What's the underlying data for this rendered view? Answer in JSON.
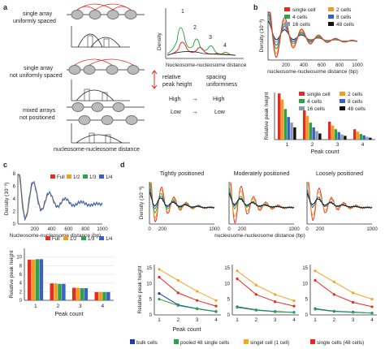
{
  "panels": {
    "a": {
      "letter": "a",
      "schematic_labels": [
        "single array\nuniformly spaced",
        "single array\nnot uniformly spaced",
        "mixed arrays\nnot positioned"
      ],
      "x_label": "nucleosome-nucleosome distance",
      "density_axis": "Density",
      "inset_axis": "Nucleosome-nucleosome distance",
      "peak_numbers": [
        "1",
        "2",
        "3",
        "4"
      ],
      "legend_relative": "relative\npeak height",
      "legend_spacing": "spacing\nuniformness",
      "legend_high": "High",
      "legend_low": "Low",
      "arrow_glyph": "→"
    },
    "b": {
      "letter": "b",
      "density_ylabel": "Density (10⁻³)",
      "density_xlabel": "nucleosome-nucleosome distance (bp)",
      "bar_ylabel": "Relative peak height",
      "bar_xlabel": "Peak count"
    },
    "c": {
      "letter": "c",
      "density_ylabel": "Density (10⁻³)",
      "density_xlabel": "Nucleosome-nucleosome distance (bp)",
      "bar_ylabel": "Relative peak height",
      "bar_xlabel": "Peak count"
    },
    "d": {
      "letter": "d",
      "titles": [
        "Tightly positioned",
        "Moderately positioned",
        "Loosely positioned"
      ],
      "density_ylabel": "Density (10⁻³)",
      "density_xlabel": "nucleosome-nucleosome distance (bp)",
      "line_ylabel": "Relative peak height",
      "line_xlabel": "Peak count",
      "legend": [
        "bulk cells",
        "pooled 48 single cells",
        "singel cell (1 cell)",
        "single cells (48 cells)"
      ]
    }
  },
  "colors": {
    "single_cell": "#e8291b",
    "cells2": "#f39c1f",
    "cells4": "#2aa34a",
    "cells8": "#3a62c4",
    "cells16": "#8e9ab0",
    "cells48": "#111111",
    "full": "#e8291b",
    "half": "#f39c1f",
    "third": "#2aa34a",
    "quarter": "#3a62c4",
    "bulk": "#1f3fa8",
    "pooled": "#2aa34a",
    "singel": "#f5a623",
    "single48": "#e8291b"
  },
  "chart_data": [
    {
      "id": "b-density",
      "type": "line",
      "xlim": [
        0,
        1000
      ],
      "xticks": [
        "200",
        "400",
        "600",
        "800",
        "1000"
      ],
      "yticks": [],
      "series": [
        {
          "name": "single cell",
          "color": "#e8291b",
          "amp": 1.0
        },
        {
          "name": "2 cells",
          "color": "#f39c1f",
          "amp": 0.85
        },
        {
          "name": "4 cells",
          "color": "#2aa34a",
          "amp": 0.65
        },
        {
          "name": "8 cells",
          "color": "#3a62c4",
          "amp": 0.5
        },
        {
          "name": "16 cells",
          "color": "#8e9ab0",
          "amp": 0.38
        },
        {
          "name": "48 cells",
          "color": "#111111",
          "amp": 0.28
        }
      ]
    },
    {
      "id": "b-bars",
      "type": "bar",
      "categories": [
        "1",
        "2",
        "3",
        "4"
      ],
      "yticks": [],
      "ylim": [
        0,
        1.0
      ],
      "series": [
        {
          "name": "single cell",
          "color": "#e8291b",
          "values": [
            0.98,
            0.62,
            0.38,
            0.22
          ]
        },
        {
          "name": "2 cells",
          "color": "#f39c1f",
          "values": [
            0.85,
            0.5,
            0.3,
            0.17
          ]
        },
        {
          "name": "4 cells",
          "color": "#2aa34a",
          "values": [
            0.65,
            0.36,
            0.22,
            0.12
          ]
        },
        {
          "name": "8 cells",
          "color": "#3a62c4",
          "values": [
            0.48,
            0.26,
            0.16,
            0.09
          ]
        },
        {
          "name": "16 cells",
          "color": "#8e9ab0",
          "values": [
            0.36,
            0.18,
            0.11,
            0.06
          ]
        },
        {
          "name": "48 cells",
          "color": "#111111",
          "values": [
            0.26,
            0.13,
            0.08,
            0.04
          ]
        }
      ]
    },
    {
      "id": "c-density",
      "type": "line",
      "xlim": [
        0,
        1000
      ],
      "xticks": [
        "200",
        "400",
        "600",
        "800",
        "1000"
      ],
      "yticks": [
        "0",
        "2",
        "4",
        "6",
        "8"
      ],
      "series": [
        {
          "name": "Full",
          "color": "#e8291b"
        },
        {
          "name": "1/2",
          "color": "#f39c1f"
        },
        {
          "name": "1/3",
          "color": "#2aa34a"
        },
        {
          "name": "1/4",
          "color": "#3a62c4"
        }
      ]
    },
    {
      "id": "c-bars",
      "type": "bar",
      "categories": [
        "1",
        "2",
        "3",
        "4"
      ],
      "yticks": [
        "0",
        "2",
        "4",
        "6",
        "8",
        "10"
      ],
      "ylim": [
        0,
        12
      ],
      "series": [
        {
          "name": "Full",
          "color": "#e8291b",
          "values": [
            9.4,
            3.9,
            2.9,
            1.9
          ]
        },
        {
          "name": "1/2",
          "color": "#f39c1f",
          "values": [
            9.4,
            3.9,
            2.9,
            1.9
          ]
        },
        {
          "name": "1/3",
          "color": "#2aa34a",
          "values": [
            9.5,
            3.8,
            2.8,
            1.9
          ]
        },
        {
          "name": "1/4",
          "color": "#3a62c4",
          "values": [
            9.5,
            3.8,
            2.8,
            1.9
          ]
        }
      ]
    },
    {
      "id": "d-lines",
      "type": "line",
      "categories": [
        "1",
        "2",
        "3",
        "4"
      ],
      "yticks": [
        "0",
        "5",
        "10",
        "15"
      ],
      "ylim": [
        0,
        16
      ],
      "panels": [
        {
          "series": [
            {
              "name": "bulk cells",
              "color": "#1f3fa8",
              "values": [
                6.8,
                3.2,
                2.0,
                1.1
              ]
            },
            {
              "name": "pooled 48 single cells",
              "color": "#2aa34a",
              "values": [
                5.0,
                3.0,
                1.9,
                1.0
              ]
            },
            {
              "name": "singel cell (1 cell)",
              "color": "#f5a623",
              "values": [
                14.5,
                11.0,
                7.5,
                4.6
              ]
            },
            {
              "name": "single cells (48 cells)",
              "color": "#e8291b",
              "values": [
                12.0,
                7.0,
                4.6,
                2.8
              ]
            }
          ]
        },
        {
          "series": [
            {
              "name": "bulk cells",
              "color": "#1f3fa8",
              "values": [
                2.6,
                1.6,
                1.1,
                0.8
              ]
            },
            {
              "name": "pooled 48 single cells",
              "color": "#2aa34a",
              "values": [
                2.4,
                1.5,
                1.0,
                0.8
              ]
            },
            {
              "name": "singel cell (1 cell)",
              "color": "#f5a623",
              "values": [
                14.0,
                9.5,
                6.5,
                4.5
              ]
            },
            {
              "name": "single cells (48 cells)",
              "color": "#e8291b",
              "values": [
                11.5,
                6.5,
                4.2,
                2.8
              ]
            }
          ]
        },
        {
          "series": [
            {
              "name": "bulk cells",
              "color": "#1f3fa8",
              "values": [
                2.0,
                1.2,
                0.9,
                0.6
              ]
            },
            {
              "name": "pooled 48 single cells",
              "color": "#2aa34a",
              "values": [
                1.8,
                1.1,
                0.8,
                0.6
              ]
            },
            {
              "name": "singel cell (1 cell)",
              "color": "#f5a623",
              "values": [
                14.0,
                10.5,
                7.0,
                5.0
              ]
            },
            {
              "name": "single cells (48 cells)",
              "color": "#e8291b",
              "values": [
                11.0,
                6.5,
                4.0,
                2.6
              ]
            }
          ]
        }
      ]
    }
  ]
}
